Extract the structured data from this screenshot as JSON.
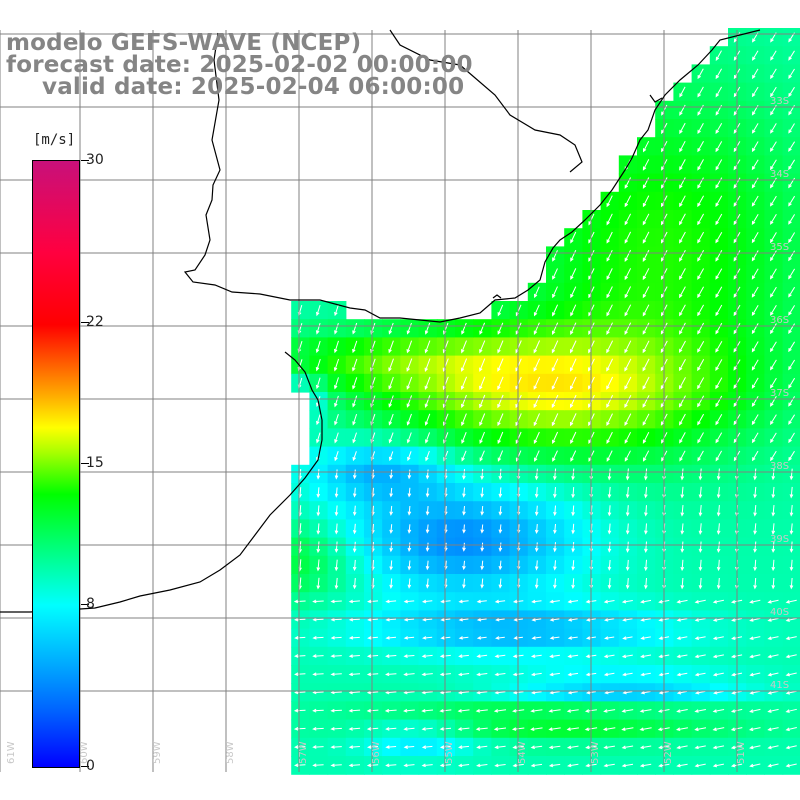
{
  "title": {
    "line1": "modelo GEFS-WAVE (NCEP)",
    "line2": "forecast date: 2025-02-02 00:00:00",
    "line3": "valid date: 2025-02-04 06:00:00"
  },
  "colorbar": {
    "unit": "[m/s]",
    "ticks": [
      "30",
      "22",
      "15",
      "8",
      "0"
    ],
    "tick_values": [
      30,
      22,
      15,
      8,
      0
    ],
    "range": [
      0,
      30
    ]
  },
  "lat_labels": [
    "33S",
    "34S",
    "35S",
    "36S",
    "37S",
    "38S",
    "39S",
    "40S",
    "41S"
  ],
  "lon_labels": [
    "61W",
    "60W",
    "59W",
    "58W",
    "57W",
    "56W",
    "55W",
    "54W",
    "53W",
    "52W",
    "51W"
  ],
  "colors": {
    "land": "#ffffff",
    "coastline": "#000000",
    "grid": "#808080",
    "arrow": "#ffffff",
    "title_text": "#858585"
  },
  "map": {
    "type": "wind speed field with direction arrows",
    "variable_unit": "m/s",
    "region": "Rio de la Plata / Uruguay / Buenos Aires coast"
  }
}
